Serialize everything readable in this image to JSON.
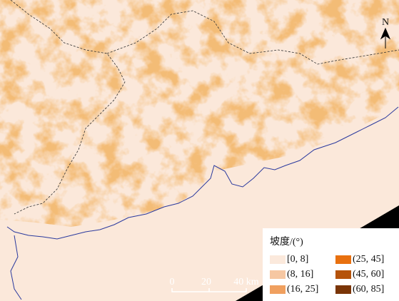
{
  "north": "N",
  "legend": {
    "title": "坡度/(°)",
    "items": [
      {
        "label": "[0, 8]",
        "color": "#fbe9dc"
      },
      {
        "label": "(8, 16]",
        "color": "#f6c7a2"
      },
      {
        "label": "(16, 25]",
        "color": "#f0a05f"
      },
      {
        "label": "(25, 45]",
        "color": "#e8700f"
      },
      {
        "label": "(45, 60]",
        "color": "#b5530a"
      },
      {
        "label": "(60, 85]",
        "color": "#7a3507"
      }
    ]
  },
  "scale_bar": {
    "labels": [
      "0",
      "20",
      "40 km"
    ]
  }
}
